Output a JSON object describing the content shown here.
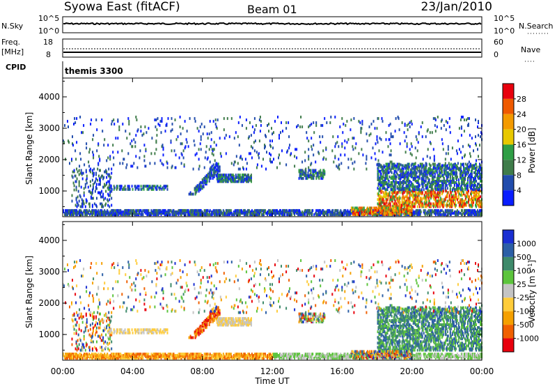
{
  "header": {
    "station": "Syowa East (fitACF)",
    "beam": "Beam 01",
    "date": "23/Jan/2010"
  },
  "summary_panels": {
    "nsky_label": "N.Sky",
    "nsky_ticks": [
      "10^5",
      "10^0"
    ],
    "nsearch_label": "N.Search",
    "nsearch_ticks": [
      "10^5",
      "10^0"
    ],
    "freq_label_line1": "Freq.",
    "freq_label_line2": "[MHz]",
    "freq_ticks": [
      "18",
      "8"
    ],
    "nave_label": "Nave",
    "nave_ticks": [
      "60",
      "0"
    ],
    "cpid_label": "CPID",
    "cpid_value": "themis 3300"
  },
  "chart_data": [
    {
      "type": "heatmap",
      "parameter": "Power",
      "ylabel": "Slant Range [km]",
      "xlabel": "",
      "ylim": [
        180,
        4600
      ],
      "yticks": [
        "1000",
        "2000",
        "3000",
        "4000"
      ],
      "colorbar_label": "Power [dB]",
      "colorbar_ticks": [
        "4",
        "8",
        "12",
        "16",
        "20",
        "24",
        "28"
      ],
      "colorbar_colors": [
        "#0a1eff",
        "#214cac",
        "#3f7c4a",
        "#2f9e45",
        "#e8c800",
        "#f39a00",
        "#ef5a00",
        "#e8000d"
      ],
      "xlim_hours": [
        0,
        24
      ]
    },
    {
      "type": "heatmap",
      "parameter": "Velocity",
      "ylabel": "Slant Range [km]",
      "xlabel": "Time UT",
      "ylim": [
        180,
        4600
      ],
      "yticks": [
        "1000",
        "2000",
        "3000",
        "4000"
      ],
      "colorbar_label": "Velocity [m s-1]",
      "colorbar_ticks": [
        "1000",
        "500",
        "100",
        "25",
        "-25",
        "-100",
        "-500",
        "-1000"
      ],
      "colorbar_colors": [
        "#1a2fd2",
        "#2c5fa6",
        "#3e8a6a",
        "#5cc43c",
        "#c4c4c4",
        "#ffcc3a",
        "#f5a000",
        "#f06000",
        "#e8000d"
      ],
      "xticks": [
        "00:00",
        "04:00",
        "08:00",
        "12:00",
        "16:00",
        "20:00",
        "00:00"
      ],
      "xlim_hours": [
        0,
        24
      ]
    }
  ]
}
